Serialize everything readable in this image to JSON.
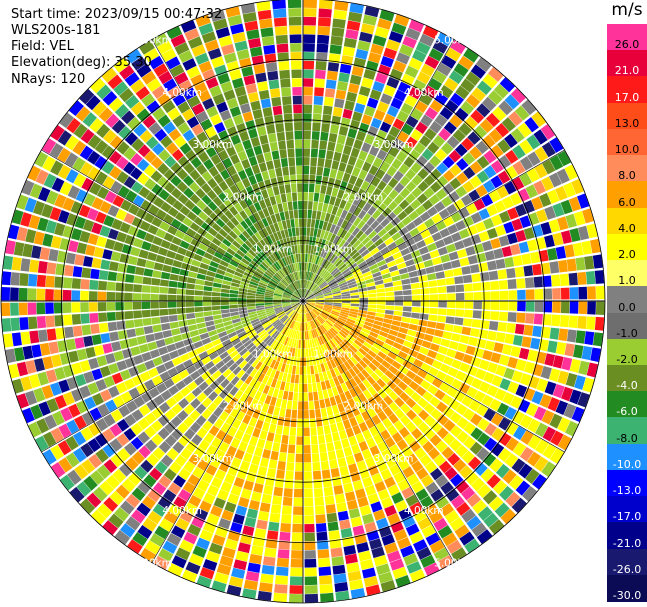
{
  "info": {
    "start_time": "Start time: 2023/09/15 00:47:32",
    "site": "WLS200s-181",
    "field": "Field: VEL",
    "elevation": "Elevation(deg): 35.30",
    "nrays": "NRays: 120"
  },
  "colorbar": {
    "unit": "m/s",
    "levels": [
      {
        "label": "26.0",
        "color": "#ff3399"
      },
      {
        "label": "21.0",
        "color": "#e8003a"
      },
      {
        "label": "17.0",
        "color": "#ff1a1a"
      },
      {
        "label": "13.0",
        "color": "#ff4d1a"
      },
      {
        "label": "10.0",
        "color": "#ff6633"
      },
      {
        "label": "8.0",
        "color": "#ff8c5a"
      },
      {
        "label": "6.0",
        "color": "#ff9f00"
      },
      {
        "label": "4.0",
        "color": "#ffd800"
      },
      {
        "label": "2.0",
        "color": "#ffff00"
      },
      {
        "label": "1.0",
        "color": "#ffff66"
      },
      {
        "label": "0.0",
        "color": "#808080"
      },
      {
        "label": "-1.0",
        "color": "#6e6e6e"
      },
      {
        "label": "-2.0",
        "color": "#9acd32"
      },
      {
        "label": "-4.0",
        "color": "#6b8e23"
      },
      {
        "label": "-6.0",
        "color": "#228b22"
      },
      {
        "label": "-8.0",
        "color": "#3cb371"
      },
      {
        "label": "-10.0",
        "color": "#1e90ff"
      },
      {
        "label": "-13.0",
        "color": "#0000ff"
      },
      {
        "label": "-17.0",
        "color": "#0000cd"
      },
      {
        "label": "-21.0",
        "color": "#00008b"
      },
      {
        "label": "-26.0",
        "color": "#191970"
      },
      {
        "label": "-30.0",
        "color": "#0b0b55"
      }
    ]
  },
  "range_labels": [
    "1.00km",
    "2.00km",
    "3.00km",
    "4.00km",
    "5.00km"
  ]
}
